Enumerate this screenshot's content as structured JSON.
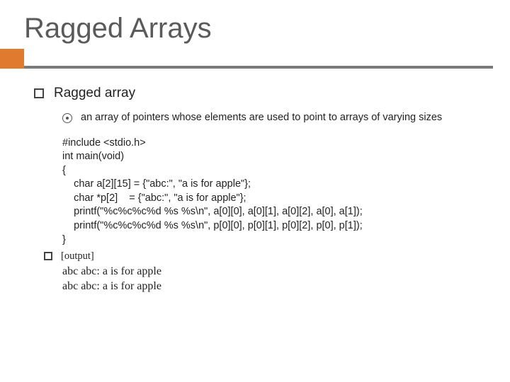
{
  "title": "Ragged Arrays",
  "section": {
    "heading": "Ragged array",
    "definition": "an array of pointers whose elements are used to point to arrays of varying sizes"
  },
  "code": {
    "line1": "#include <stdio.h>",
    "line2": "int main(void)",
    "line3": "{",
    "line4": "    char a[2][15] = {\"abc:\", \"a is for apple\"};",
    "line5": "    char *p[2]    = {\"abc:\", \"a is for apple\"};",
    "line6": "    printf(\"%c%c%c%d %s %s\\n\", a[0][0], a[0][1], a[0][2], a[0], a[1]);",
    "line7": "    printf(\"%c%c%c%d %s %s\\n\", p[0][0], p[0][1], p[0][2], p[0], p[1]);",
    "line8": "}"
  },
  "output": {
    "label": "[output]",
    "line1": "abc abc: a is for apple",
    "line2": "abc abc: a is for apple"
  },
  "colors": {
    "accent": "#e07a2e",
    "bar": "#7a7a7a",
    "title": "#5a5a5a",
    "text": "#222222",
    "background": "#ffffff"
  }
}
